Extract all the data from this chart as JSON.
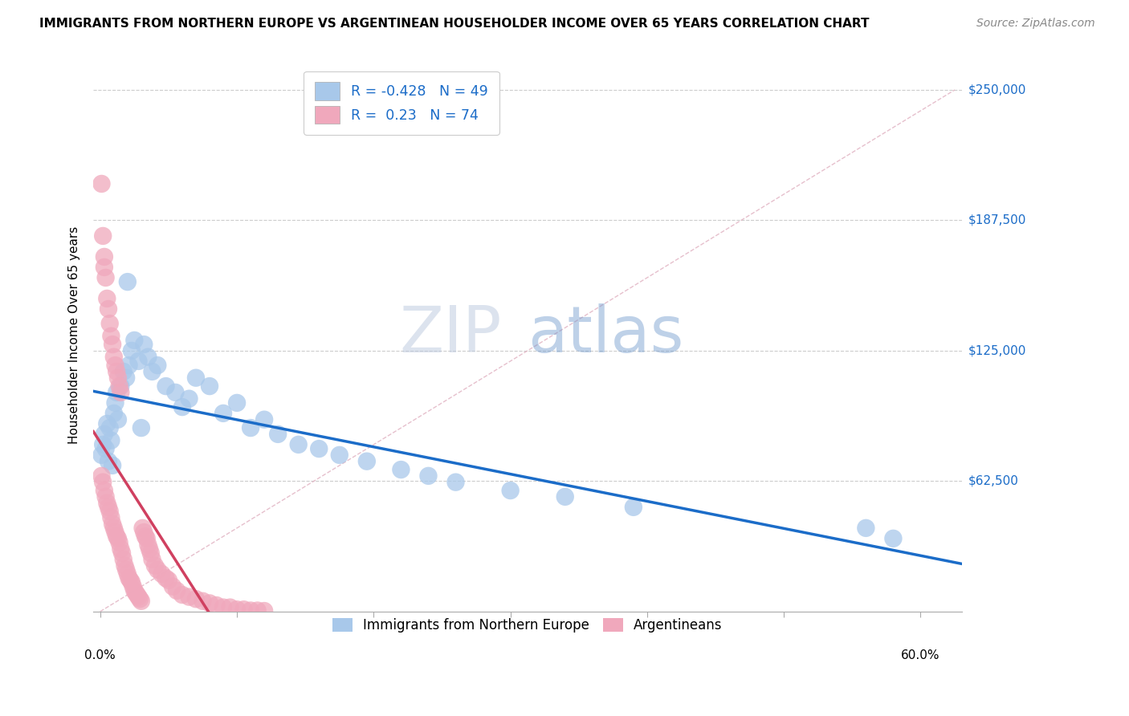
{
  "title": "IMMIGRANTS FROM NORTHERN EUROPE VS ARGENTINEAN HOUSEHOLDER INCOME OVER 65 YEARS CORRELATION CHART",
  "source": "Source: ZipAtlas.com",
  "ylabel": "Householder Income Over 65 years",
  "ylabel_ticks": [
    "$62,500",
    "$125,000",
    "$187,500",
    "$250,000"
  ],
  "ylabel_vals": [
    62500,
    125000,
    187500,
    250000
  ],
  "ylim": [
    0,
    265000
  ],
  "xlim": [
    -0.005,
    0.63
  ],
  "blue_R": -0.428,
  "blue_N": 49,
  "pink_R": 0.23,
  "pink_N": 74,
  "blue_color": "#A8C8EA",
  "pink_color": "#F0A8BC",
  "blue_line_color": "#1B6CC8",
  "pink_line_color": "#D04060",
  "legend_text_color": "#1B6CC8",
  "watermark_zip": "ZIP",
  "watermark_atlas": "atlas",
  "blue_scatter_x": [
    0.001,
    0.002,
    0.003,
    0.004,
    0.005,
    0.006,
    0.007,
    0.008,
    0.009,
    0.01,
    0.011,
    0.012,
    0.013,
    0.015,
    0.017,
    0.019,
    0.021,
    0.023,
    0.025,
    0.028,
    0.032,
    0.035,
    0.038,
    0.042,
    0.048,
    0.055,
    0.06,
    0.065,
    0.07,
    0.08,
    0.09,
    0.1,
    0.11,
    0.12,
    0.13,
    0.145,
    0.16,
    0.175,
    0.195,
    0.22,
    0.24,
    0.26,
    0.3,
    0.34,
    0.39,
    0.56,
    0.58,
    0.02,
    0.03
  ],
  "blue_scatter_y": [
    75000,
    80000,
    85000,
    78000,
    90000,
    72000,
    88000,
    82000,
    70000,
    95000,
    100000,
    105000,
    92000,
    108000,
    115000,
    112000,
    118000,
    125000,
    130000,
    120000,
    128000,
    122000,
    115000,
    118000,
    108000,
    105000,
    98000,
    102000,
    112000,
    108000,
    95000,
    100000,
    88000,
    92000,
    85000,
    80000,
    78000,
    75000,
    72000,
    68000,
    65000,
    62000,
    58000,
    55000,
    50000,
    40000,
    35000,
    158000,
    88000
  ],
  "pink_scatter_x": [
    0.001,
    0.002,
    0.003,
    0.004,
    0.005,
    0.006,
    0.007,
    0.008,
    0.009,
    0.01,
    0.011,
    0.012,
    0.013,
    0.014,
    0.015,
    0.016,
    0.017,
    0.018,
    0.019,
    0.02,
    0.021,
    0.022,
    0.023,
    0.024,
    0.025,
    0.026,
    0.027,
    0.028,
    0.029,
    0.03,
    0.031,
    0.032,
    0.033,
    0.034,
    0.035,
    0.036,
    0.037,
    0.038,
    0.04,
    0.042,
    0.045,
    0.048,
    0.05,
    0.053,
    0.056,
    0.06,
    0.065,
    0.07,
    0.075,
    0.08,
    0.085,
    0.09,
    0.095,
    0.1,
    0.105,
    0.11,
    0.115,
    0.12,
    0.001,
    0.002,
    0.003,
    0.004,
    0.005,
    0.006,
    0.007,
    0.008,
    0.009,
    0.01,
    0.011,
    0.012,
    0.013,
    0.014,
    0.015,
    0.003
  ],
  "pink_scatter_y": [
    65000,
    62000,
    58000,
    55000,
    52000,
    50000,
    48000,
    45000,
    42000,
    40000,
    38000,
    36000,
    35000,
    33000,
    30000,
    28000,
    25000,
    22000,
    20000,
    18000,
    16000,
    15000,
    14000,
    12000,
    10000,
    9000,
    8000,
    7000,
    6000,
    5000,
    40000,
    38000,
    36000,
    35000,
    32000,
    30000,
    28000,
    25000,
    22000,
    20000,
    18000,
    16000,
    15000,
    12000,
    10000,
    8000,
    7000,
    6000,
    5000,
    4000,
    3000,
    2000,
    2000,
    1000,
    1000,
    500,
    500,
    300,
    205000,
    180000,
    170000,
    160000,
    150000,
    145000,
    138000,
    132000,
    128000,
    122000,
    118000,
    115000,
    112000,
    108000,
    105000,
    165000
  ]
}
